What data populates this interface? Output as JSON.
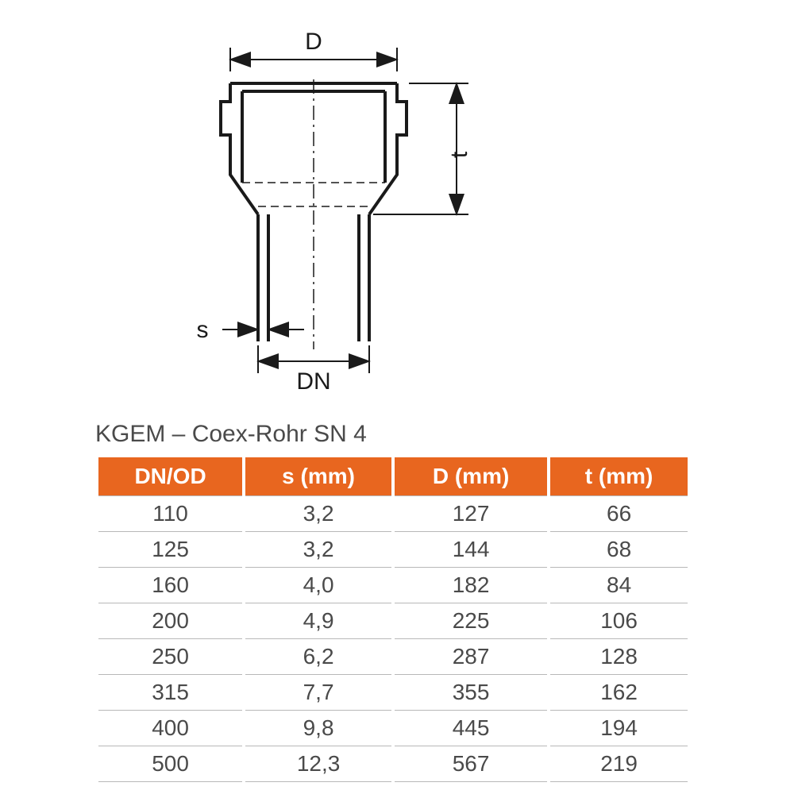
{
  "diagram": {
    "labels": {
      "D": "D",
      "t": "t",
      "s": "s",
      "DN": "DN"
    },
    "stroke": "#1a1a1a",
    "stroke_width_main": 4,
    "stroke_width_dim": 2
  },
  "table": {
    "title": "KGEM – Coex-Rohr SN 4",
    "header_bg": "#e8661f",
    "header_fg": "#ffffff",
    "body_fg": "#4a4a4a",
    "border_color": "#b8b8b8",
    "title_fontsize": 30,
    "header_fontsize": 28,
    "body_fontsize": 28,
    "columns": [
      "DN/OD",
      "s (mm)",
      "D (mm)",
      "t (mm)"
    ],
    "rows": [
      [
        "110",
        "3,2",
        "127",
        "66"
      ],
      [
        "125",
        "3,2",
        "144",
        "68"
      ],
      [
        "160",
        "4,0",
        "182",
        "84"
      ],
      [
        "200",
        "4,9",
        "225",
        "106"
      ],
      [
        "250",
        "6,2",
        "287",
        "128"
      ],
      [
        "315",
        "7,7",
        "355",
        "162"
      ],
      [
        "400",
        "9,8",
        "445",
        "194"
      ],
      [
        "500",
        "12,3",
        "567",
        "219"
      ]
    ]
  }
}
